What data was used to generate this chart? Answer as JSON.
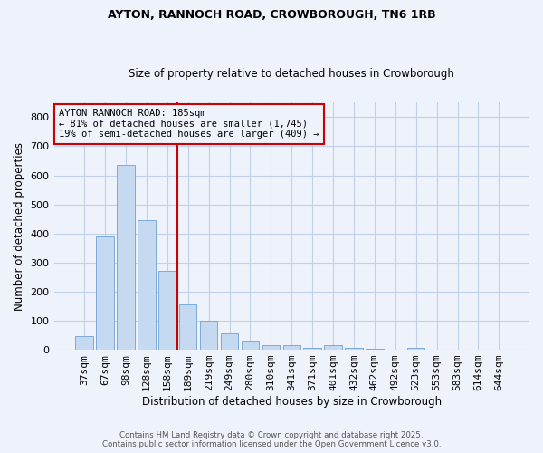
{
  "title1": "AYTON, RANNOCH ROAD, CROWBOROUGH, TN6 1RB",
  "title2": "Size of property relative to detached houses in Crowborough",
  "xlabel": "Distribution of detached houses by size in Crowborough",
  "ylabel": "Number of detached properties",
  "bar_labels": [
    "37sqm",
    "67sqm",
    "98sqm",
    "128sqm",
    "158sqm",
    "189sqm",
    "219sqm",
    "249sqm",
    "280sqm",
    "310sqm",
    "341sqm",
    "371sqm",
    "401sqm",
    "432sqm",
    "462sqm",
    "492sqm",
    "523sqm",
    "553sqm",
    "583sqm",
    "614sqm",
    "644sqm"
  ],
  "bar_values": [
    47,
    390,
    635,
    445,
    270,
    155,
    100,
    57,
    30,
    17,
    15,
    5,
    15,
    7,
    4,
    0,
    5,
    0,
    0,
    0,
    0
  ],
  "bar_color": "#c5d9f0",
  "bar_edgecolor": "#7aaadc",
  "grid_color": "#c0d0e8",
  "vline_index": 5,
  "vline_color": "#cc0000",
  "annotation_line1": "AYTON RANNOCH ROAD: 185sqm",
  "annotation_line2": "← 81% of detached houses are smaller (1,745)",
  "annotation_line3": "19% of semi-detached houses are larger (409) →",
  "annotation_box_color": "#cc0000",
  "annotation_text_color": "#000000",
  "footer1": "Contains HM Land Registry data © Crown copyright and database right 2025.",
  "footer2": "Contains public sector information licensed under the Open Government Licence v3.0.",
  "ylim": [
    0,
    850
  ],
  "yticks": [
    0,
    100,
    200,
    300,
    400,
    500,
    600,
    700,
    800
  ],
  "background_color": "#eef2fa"
}
